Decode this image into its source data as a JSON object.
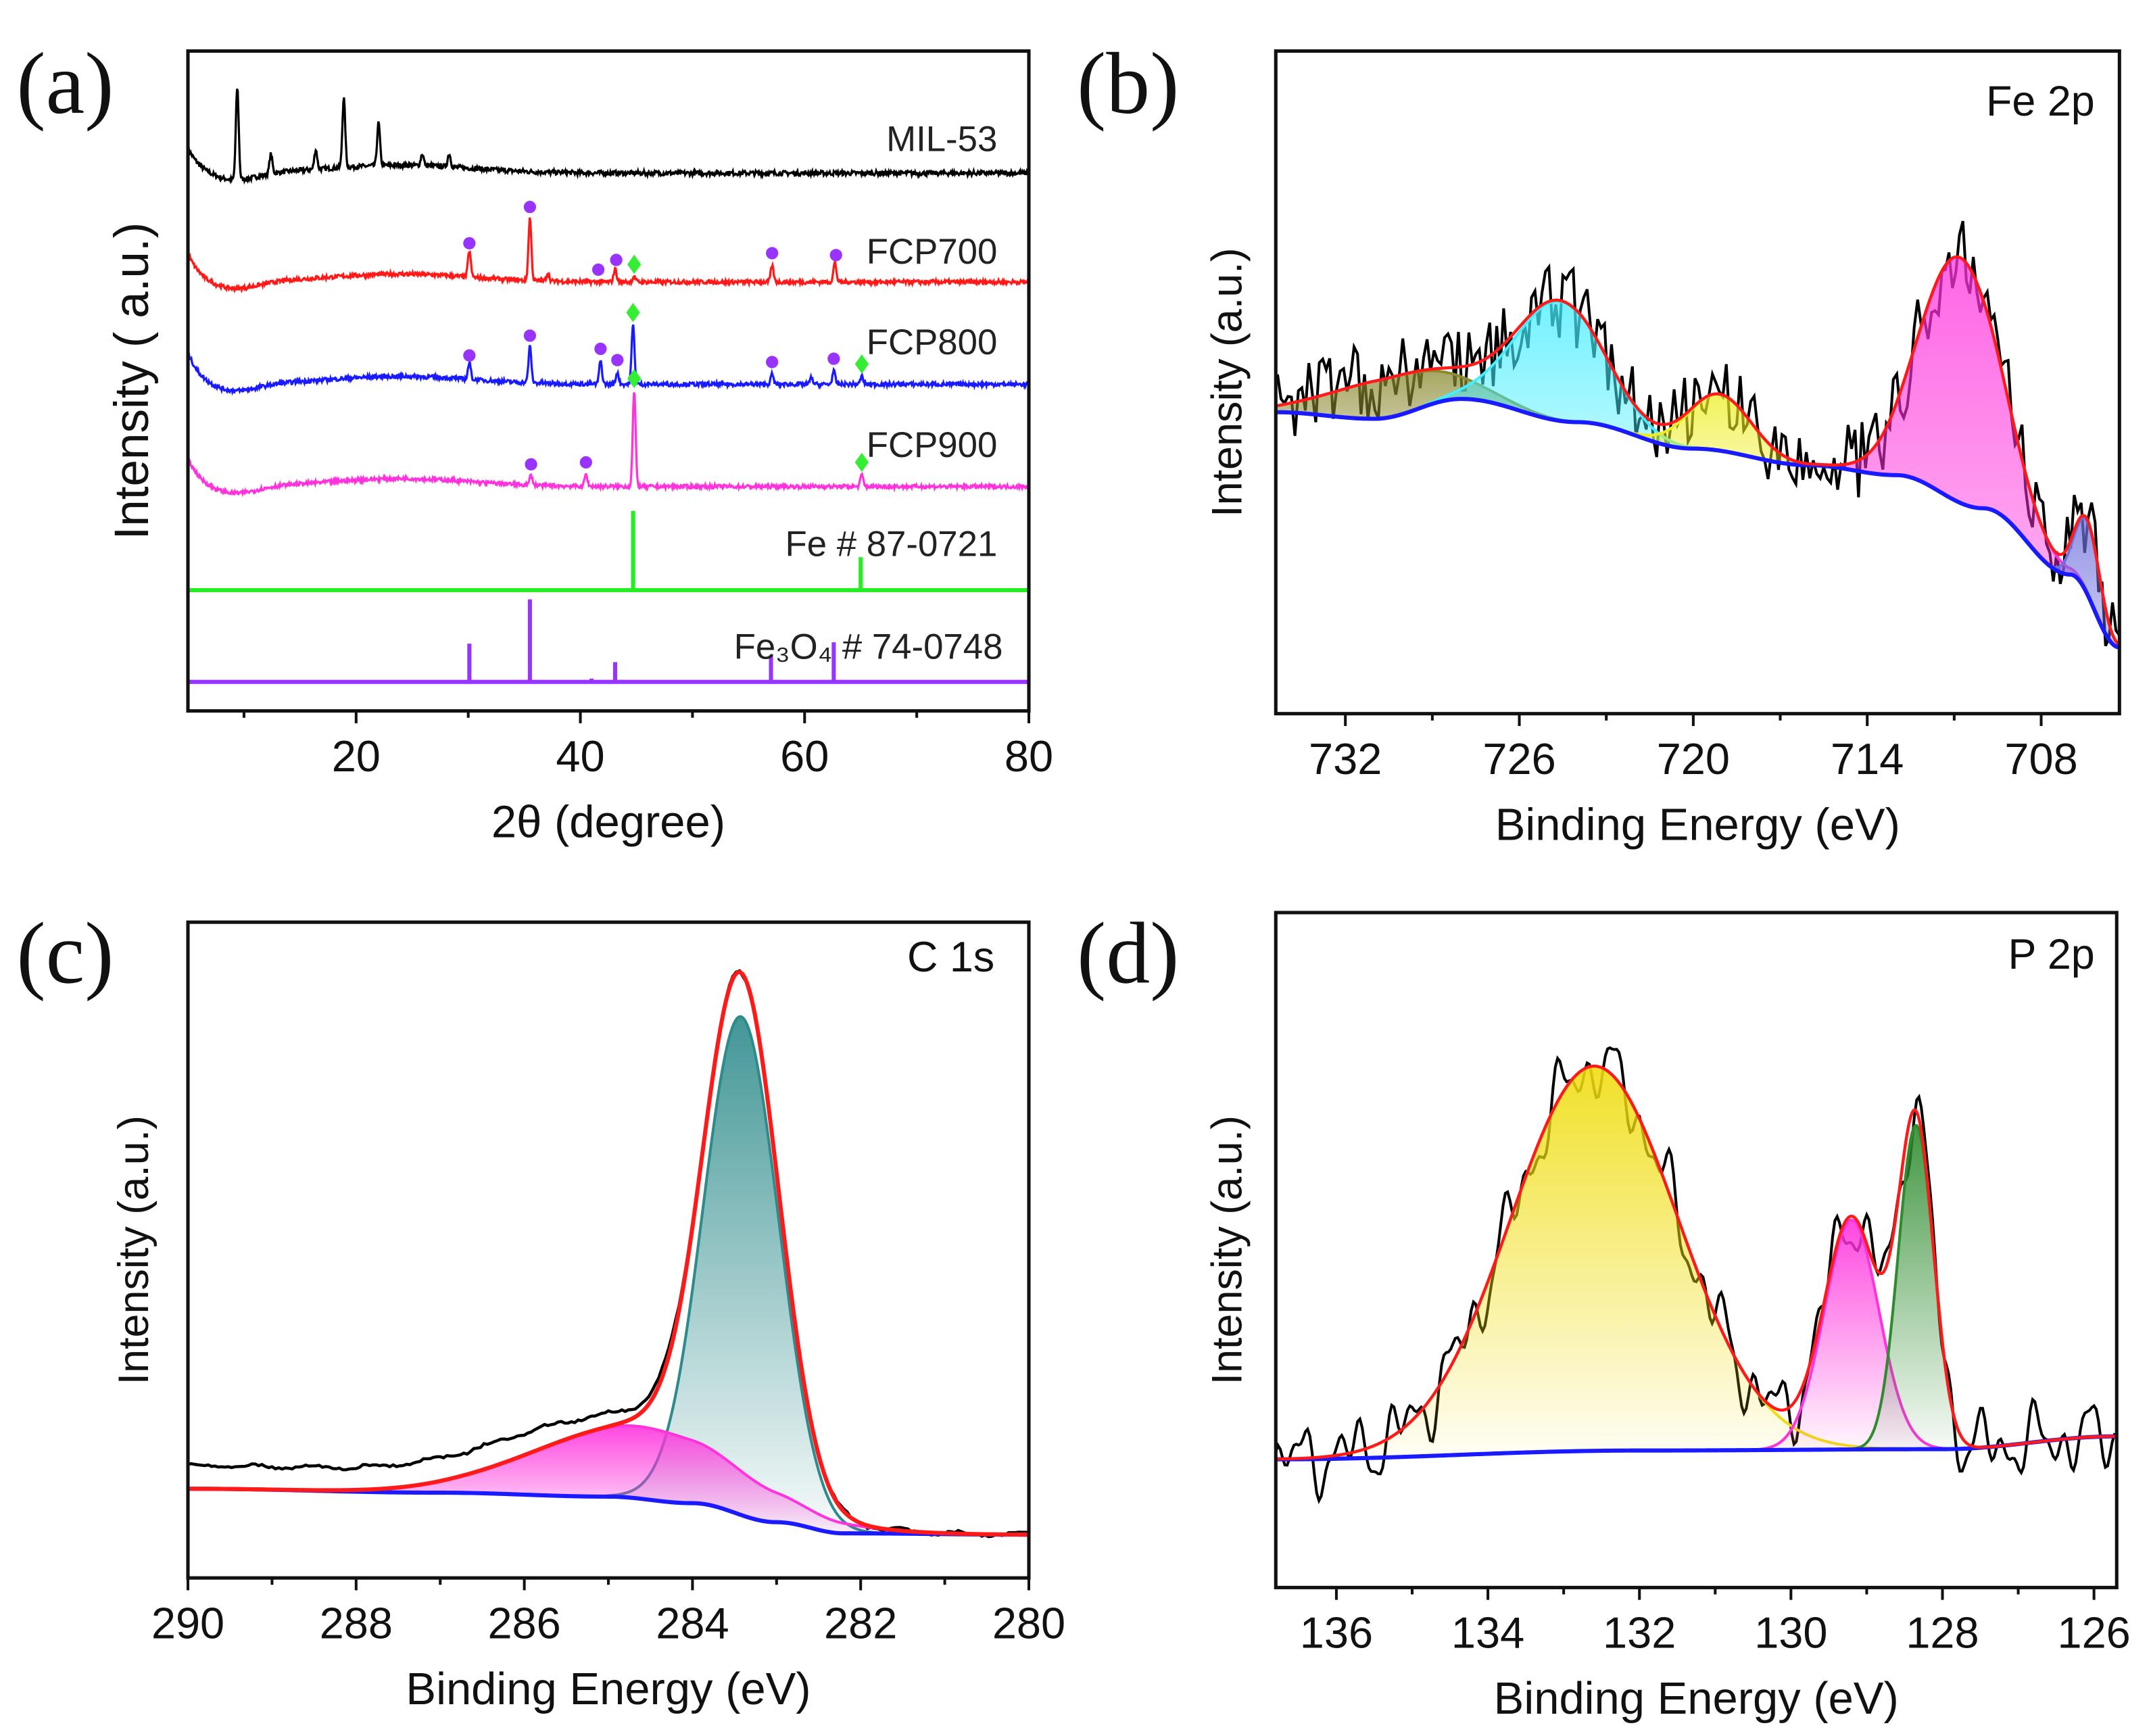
{
  "chart_data": [
    {
      "id": "a",
      "type": "line",
      "panel_label": "(a)",
      "xlabel": "2θ (degree)",
      "ylabel": "Intensity ( a.u.)",
      "xlim": [
        5,
        80
      ],
      "ylim": [
        0,
        100
      ],
      "xticks": [
        "20",
        "40",
        "60",
        "80"
      ],
      "xtick_values": [
        20,
        40,
        60,
        80
      ],
      "minor_step": 10,
      "marker_colors": {
        "circle": "#9933ff",
        "diamond": "#33ee33"
      },
      "series": [
        {
          "name": "MIL-53",
          "color": "#000000",
          "baseline": 81.5,
          "rise": 4,
          "noise": 0.7,
          "peaks": [
            [
              9.4,
              14
            ],
            [
              12.4,
              3
            ],
            [
              16.4,
              3
            ],
            [
              18.9,
              10.5
            ],
            [
              22.0,
              6.5
            ],
            [
              25.9,
              1.8
            ],
            [
              28.3,
              2
            ]
          ],
          "circles": [],
          "diamonds": []
        },
        {
          "name": "FCP700",
          "color": "#ff1a1a",
          "baseline": 65,
          "rise": 4.5,
          "noise": 0.6,
          "peaks": [
            [
              30.1,
              4
            ],
            [
              35.5,
              9.5
            ],
            [
              37.1,
              1.2
            ],
            [
              43.1,
              2
            ],
            [
              44.8,
              0.8
            ],
            [
              57.1,
              2.5
            ],
            [
              62.7,
              3
            ]
          ],
          "circles": [
            30.1,
            35.5,
            41.6,
            43.2,
            57.1,
            62.8
          ],
          "diamonds": [
            44.8
          ]
        },
        {
          "name": "FCP800",
          "color": "#1a1aff",
          "baseline": 49.5,
          "rise": 5,
          "noise": 0.6,
          "peaks": [
            [
              30.1,
              2.5
            ],
            [
              35.5,
              5.5
            ],
            [
              41.8,
              3.5
            ],
            [
              43.3,
              1.8
            ],
            [
              44.7,
              9
            ],
            [
              57.1,
              1.5
            ],
            [
              60.6,
              1
            ],
            [
              62.6,
              2
            ],
            [
              65.1,
              1.2
            ]
          ],
          "circles": [
            30.1,
            35.5,
            41.8,
            43.3,
            57.1,
            62.6
          ],
          "diamonds": [
            44.7,
            65.1
          ]
        },
        {
          "name": "FCP900",
          "color": "#ff33dd",
          "baseline": 34,
          "rise": 4.5,
          "noise": 0.55,
          "peaks": [
            [
              35.6,
              1.5
            ],
            [
              40.5,
              1.8
            ],
            [
              44.8,
              14.5
            ],
            [
              65.1,
              1.8
            ]
          ],
          "circles": [
            35.6,
            40.5
          ],
          "diamonds": [
            44.8,
            65.1
          ]
        },
        {
          "name": "Fe # 87-0721",
          "color": "#22ee22",
          "baseline": 18.3,
          "sticks": [
            [
              44.7,
              12
            ],
            [
              65.0,
              5
            ]
          ]
        },
        {
          "name": "Fe₃O₄ # 74-0748",
          "color": "#9933ff",
          "baseline": 4.4,
          "sticks": [
            [
              30.1,
              5.8
            ],
            [
              35.5,
              12.5
            ],
            [
              41.0,
              0.5
            ],
            [
              43.1,
              3
            ],
            [
              57.0,
              4
            ],
            [
              62.6,
              6
            ]
          ]
        }
      ]
    },
    {
      "id": "b",
      "type": "line",
      "panel_label": "(b)",
      "title": "Fe 2p",
      "xlabel": "Binding Energy (eV)",
      "ylabel": "Intensity (a.u.)",
      "xlim": [
        734.4,
        705.3
      ],
      "ylim": [
        0,
        100
      ],
      "xticks": [
        "732",
        "726",
        "720",
        "714",
        "708"
      ],
      "xtick_values": [
        732,
        726,
        720,
        714,
        708
      ],
      "minor_step": 3,
      "background": {
        "color": "#1a1aff",
        "points": [
          [
            734.4,
            45.5
          ],
          [
            731,
            44.5
          ],
          [
            728,
            47.5
          ],
          [
            724,
            44
          ],
          [
            720,
            40
          ],
          [
            716,
            37.5
          ],
          [
            713,
            36
          ],
          [
            710,
            31
          ],
          [
            707,
            21
          ],
          [
            705.3,
            10
          ]
        ]
      },
      "envelope_color": "#ff1a1a",
      "data_color": "#000000",
      "noise": 6,
      "components": [
        {
          "center": 730.3,
          "height": 6,
          "fwhm": 5,
          "color": "#8a8a30"
        },
        {
          "center": 724.6,
          "height": 18,
          "fwhm": 3.6,
          "color": "#44eeff"
        },
        {
          "center": 719.1,
          "height": 8.5,
          "fwhm": 2.6,
          "color": "#eeee22"
        },
        {
          "center": 710.8,
          "height": 37,
          "fwhm": 3.3,
          "color": "#ff33dd"
        },
        {
          "center": 706.4,
          "height": 11,
          "fwhm": 1.0,
          "color": "#7070dd"
        }
      ]
    },
    {
      "id": "c",
      "type": "line",
      "panel_label": "(c)",
      "title": "C 1s",
      "xlabel": "Binding Energy (eV)",
      "ylabel": "Intensity (a.u.)",
      "xlim": [
        290,
        280
      ],
      "ylim": [
        0,
        100
      ],
      "xticks": [
        "290",
        "288",
        "286",
        "284",
        "282",
        "280"
      ],
      "xtick_values": [
        290,
        288,
        286,
        284,
        282,
        280
      ],
      "minor_step": 1,
      "background": {
        "color": "#1a1aff",
        "points": [
          [
            290,
            13.6
          ],
          [
            287,
            13
          ],
          [
            285,
            12.4
          ],
          [
            284,
            11.4
          ],
          [
            283,
            8.5
          ],
          [
            282.2,
            6.8
          ],
          [
            280,
            6.6
          ]
        ]
      },
      "envelope_color": "#ff1a1a",
      "data_color": "#000000",
      "noise": 0.4,
      "data_offset": 3.5,
      "components": [
        {
          "center": 283.42,
          "height": 76,
          "fwhm": 1.05,
          "color": "#2e8b8b"
        },
        {
          "center": 284.65,
          "height": 11,
          "fwhm": 2.9,
          "color": "#ff33dd"
        }
      ]
    },
    {
      "id": "d",
      "type": "line",
      "panel_label": "(d)",
      "title": "P 2p",
      "xlabel": "Binding Energy (eV)",
      "ylabel": "Intensity (a.u.)",
      "xlim": [
        136.8,
        125.7
      ],
      "ylim": [
        0,
        100
      ],
      "xticks": [
        "136",
        "134",
        "132",
        "130",
        "128",
        "126"
      ],
      "xtick_values": [
        136,
        134,
        132,
        130,
        128,
        126
      ],
      "minor_step": 1,
      "background": {
        "color": "#1a1aff",
        "points": [
          [
            136.8,
            19
          ],
          [
            132,
            20.3
          ],
          [
            128,
            20.5
          ],
          [
            125.7,
            22.4
          ]
        ]
      },
      "envelope_color": "#ff1a1a",
      "data_color": "#000000",
      "noise": 5,
      "components": [
        {
          "center": 132.6,
          "height": 57,
          "fwhm": 2.6,
          "color": "#f0dd10"
        },
        {
          "center": 129.2,
          "height": 34,
          "fwhm": 0.85,
          "color": "#ff33dd"
        },
        {
          "center": 128.35,
          "height": 48,
          "fwhm": 0.55,
          "color": "#2e8b2e"
        }
      ]
    }
  ]
}
